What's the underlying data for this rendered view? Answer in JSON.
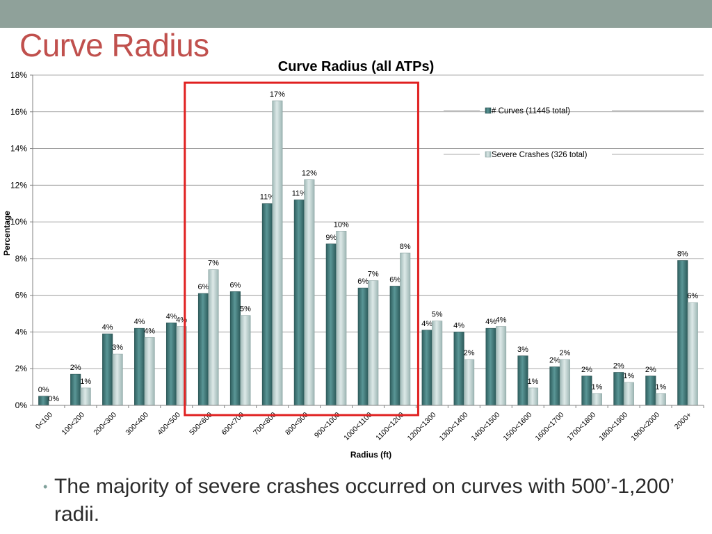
{
  "slide": {
    "title": "Curve Radius",
    "bullet": "The majority of severe crashes occurred on curves with 500’-1,200’ radii."
  },
  "colors": {
    "band": "#8fa19a",
    "title": "#c0504d",
    "series1": "#3d7474",
    "series2": "#b9cfcd",
    "highlight_box": "#e02020"
  },
  "chart_data": {
    "type": "bar",
    "title": "Curve Radius (all ATPs)",
    "xlabel": "Radius (ft)",
    "ylabel": "Percentage",
    "ylim": [
      0,
      18
    ],
    "yticks": [
      "0%",
      "2%",
      "4%",
      "6%",
      "8%",
      "10%",
      "12%",
      "14%",
      "16%",
      "18%"
    ],
    "grid": true,
    "legend_position": "right",
    "categories": [
      "0<100",
      "100<200",
      "200<300",
      "300<400",
      "400<500",
      "500<600",
      "600<700",
      "700<800",
      "800<900",
      "900<1000",
      "1000<1100",
      "1100<1200",
      "1200<1300",
      "1300<1400",
      "1400<1500",
      "1500<1600",
      "1600<1700",
      "1700<1800",
      "1800<1900",
      "1900<2000",
      "2000+"
    ],
    "series": [
      {
        "name": "# Curves (11445 total)",
        "values": [
          0.5,
          1.7,
          3.9,
          4.2,
          4.5,
          6.1,
          6.2,
          11.0,
          11.2,
          8.8,
          6.4,
          6.5,
          4.1,
          4.0,
          4.2,
          2.7,
          2.1,
          1.6,
          1.8,
          1.6,
          7.9
        ],
        "labels": [
          "0%",
          "2%",
          "4%",
          "4%",
          "4%",
          "6%",
          "6%",
          "11%",
          "11%",
          "9%",
          "6%",
          "6%",
          "4%",
          "4%",
          "4%",
          "3%",
          "2%",
          "2%",
          "2%",
          "2%",
          "8%"
        ]
      },
      {
        "name": "Severe Crashes (326 total)",
        "values": [
          0.0,
          0.95,
          2.8,
          3.7,
          4.3,
          7.4,
          4.9,
          16.6,
          12.3,
          9.5,
          6.8,
          8.3,
          4.6,
          2.5,
          4.3,
          0.95,
          2.5,
          0.65,
          1.25,
          0.65,
          5.6
        ],
        "labels": [
          "0%",
          "1%",
          "3%",
          "4%",
          "4%",
          "7%",
          "5%",
          "17%",
          "12%",
          "10%",
          "7%",
          "8%",
          "5%",
          "2%",
          "4%",
          "1%",
          "2%",
          "1%",
          "1%",
          "1%",
          "6%"
        ]
      }
    ],
    "highlight_range": [
      "500<600",
      "1100<1200"
    ]
  }
}
